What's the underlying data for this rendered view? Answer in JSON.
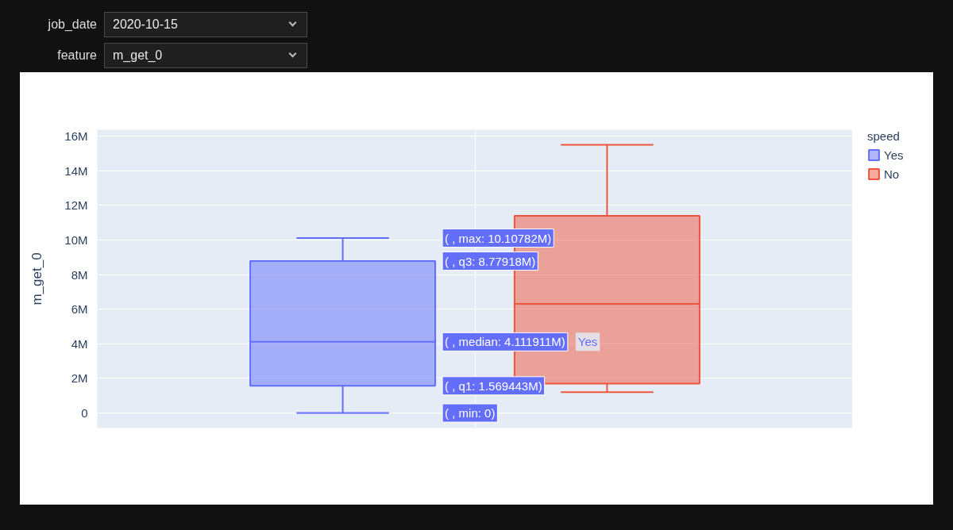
{
  "chart_data": {
    "type": "box",
    "ylabel": "m_get_0",
    "legend_title": "speed",
    "annotations": [
      "job_date",
      "2020-10-15",
      "feature",
      "m_get_0",
      "( , max: 10.10782M)",
      "( , q3: 8.77918M)",
      "( , median: 4.111911M)",
      "Yes",
      "( , q1: 1.569443M)",
      "( , min: 0)"
    ],
    "categories": [
      null
    ],
    "series": [
      {
        "name": "Yes",
        "color": "#636efa",
        "boxes": [
          {
            "low": 0,
            "q1": 1569443,
            "median": 4111911,
            "q3": 8779180,
            "high": 10107820
          }
        ]
      },
      {
        "name": "No",
        "color": "#ef553b",
        "boxes": [
          {
            "low": 1200000,
            "q1": 1700000,
            "median": 6300000,
            "q3": 11400000,
            "high": 15500000
          }
        ]
      }
    ],
    "ylim": [
      -870000,
      16370000
    ],
    "yticks": [
      0,
      {
        "value": 2000000,
        "label": "2M"
      },
      {
        "value": 4000000,
        "label": "4M"
      },
      {
        "value": 6000000,
        "label": "6M"
      },
      {
        "value": 8000000,
        "label": "8M"
      },
      {
        "value": 10000000,
        "label": "10M"
      },
      {
        "value": 12000000,
        "label": "12M"
      },
      {
        "value": 14000000,
        "label": "14M"
      },
      {
        "value": 16000000,
        "label": "16M"
      }
    ],
    "grid": true,
    "legend": "top right"
  }
}
